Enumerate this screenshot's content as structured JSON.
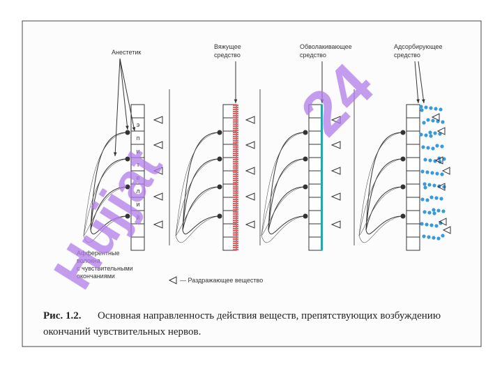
{
  "labels": {
    "anesthetic": "Анестетик",
    "astringent": [
      "Вяжущее",
      "средство"
    ],
    "coating": [
      "Обволакивающее",
      "средство"
    ],
    "adsorbing": [
      "Адсорбирующее",
      "средство"
    ],
    "epithelium_letters": [
      "э",
      "п",
      "и",
      "т",
      "е",
      "л",
      "и",
      "й"
    ],
    "afferent": [
      "Афферентные",
      "волокна",
      "с чувствительными",
      "окончаниями"
    ],
    "irritant": "— Раздражающее вещество"
  },
  "caption": {
    "number": "Рис. 1.2.",
    "lines": [
      "Основная направленность действия веществ, препятствующих возбуждению",
      "окончаний чувствительных нервов."
    ]
  },
  "watermark": [
    "Hujjat",
    "24"
  ]
}
